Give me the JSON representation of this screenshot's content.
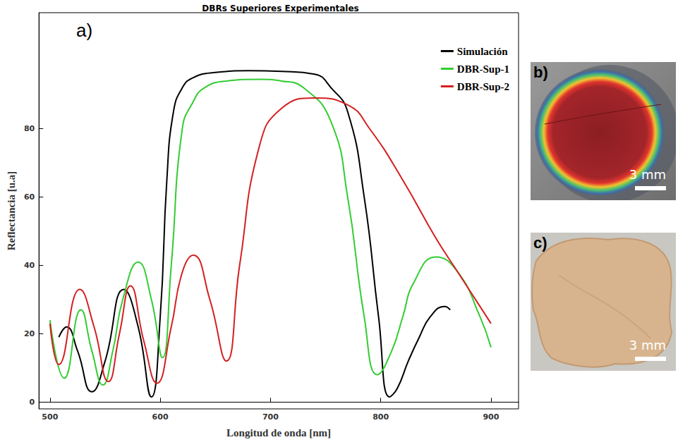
{
  "chart_data": {
    "type": "line",
    "title": "DBRs Superiores Experimentales",
    "panel_label": "a)",
    "x_label": "Longitud de onda [nm]",
    "y_label": "Reflectancia [u.a]",
    "xlim": [
      490,
      925
    ],
    "xticks": [
      500,
      600,
      700,
      800,
      900
    ],
    "ylim": [
      -2,
      114
    ],
    "yticks": [
      0,
      20,
      40,
      60,
      80
    ],
    "grid": false,
    "legend": "upper right",
    "series": [
      {
        "name": "Simulación",
        "color": "#000000",
        "x": [
          508,
          515,
          525,
          538,
          550,
          567,
          580,
          592,
          600,
          606,
          612,
          620,
          630,
          650,
          680,
          710,
          740,
          755,
          770,
          785,
          798,
          808,
          815,
          825,
          835,
          845,
          858,
          863
        ],
        "values": [
          19,
          22,
          15,
          3,
          12,
          33,
          22,
          1.5,
          25,
          65,
          85,
          92,
          95,
          96.5,
          97,
          96.8,
          96,
          92,
          85,
          60,
          25,
          1.5,
          4,
          12,
          19,
          25,
          28,
          27
        ]
      },
      {
        "name": "DBR-Sup-1",
        "color": "#33cc33",
        "x": [
          500,
          513,
          528,
          538,
          548,
          557,
          566,
          580,
          592,
          602,
          610,
          620,
          630,
          640,
          660,
          690,
          710,
          730,
          755,
          770,
          785,
          797,
          810,
          820,
          830,
          850,
          870,
          890,
          900
        ],
        "values": [
          24,
          7,
          27,
          15,
          5,
          15,
          30,
          41,
          30,
          13,
          40,
          80,
          88,
          92,
          94,
          94.5,
          94,
          92,
          82,
          60,
          25,
          8,
          15,
          25,
          35,
          42.5,
          38,
          25,
          16
        ]
      },
      {
        "name": "DBR-Sup-2",
        "color": "#d42020",
        "x": [
          500,
          508,
          527,
          540,
          553,
          563,
          573,
          585,
          597,
          610,
          620,
          630,
          645,
          660,
          672,
          690,
          710,
          740,
          770,
          790,
          820,
          850,
          870,
          890,
          900
        ],
        "values": [
          23,
          11,
          33,
          22,
          6,
          20,
          34,
          18,
          5.5,
          22,
          38,
          43,
          30,
          12,
          40,
          75,
          86,
          89,
          87,
          80,
          65,
          48,
          38,
          28,
          23
        ]
      }
    ]
  },
  "photos": [
    {
      "label": "b)",
      "scale_bar": "3 mm"
    },
    {
      "label": "c)",
      "scale_bar": "3 mm"
    }
  ]
}
